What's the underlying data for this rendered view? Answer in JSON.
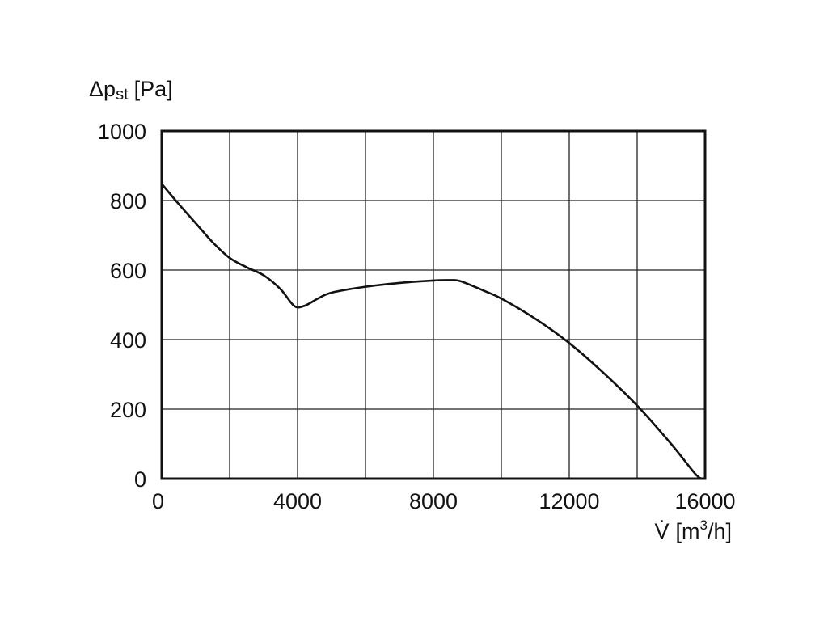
{
  "chart_data": {
    "type": "line",
    "ylabel": {
      "symbol": "Δp",
      "subscript": "st",
      "unit": "[Pa]"
    },
    "xlabel": {
      "symbol": "V̇",
      "unit_prefix": "[m",
      "unit_superscript": "3",
      "unit_suffix": "/h]"
    },
    "xlim": [
      0,
      16000
    ],
    "ylim": [
      0,
      1000
    ],
    "x_grid_step": 2000,
    "y_grid_step": 200,
    "x_tick_labels": [
      "0",
      "4000",
      "8000",
      "12000",
      "16000"
    ],
    "x_tick_values": [
      0,
      4000,
      8000,
      12000,
      16000
    ],
    "y_tick_labels": [
      "0",
      "200",
      "400",
      "600",
      "800",
      "1000"
    ],
    "y_tick_values": [
      0,
      200,
      400,
      600,
      800,
      1000
    ],
    "grid": true,
    "series": [
      {
        "color": "#111111",
        "points": [
          [
            0,
            848
          ],
          [
            500,
            790
          ],
          [
            1000,
            735
          ],
          [
            1500,
            680
          ],
          [
            2000,
            635
          ],
          [
            2500,
            608
          ],
          [
            3000,
            585
          ],
          [
            3500,
            545
          ],
          [
            3900,
            497
          ],
          [
            4200,
            497
          ],
          [
            4600,
            518
          ],
          [
            5000,
            535
          ],
          [
            6000,
            552
          ],
          [
            7000,
            563
          ],
          [
            8000,
            570
          ],
          [
            8500,
            571
          ],
          [
            8800,
            568
          ],
          [
            9500,
            540
          ],
          [
            10000,
            518
          ],
          [
            11000,
            460
          ],
          [
            12000,
            390
          ],
          [
            13000,
            305
          ],
          [
            14000,
            210
          ],
          [
            15000,
            100
          ],
          [
            15700,
            15
          ],
          [
            15900,
            0
          ]
        ]
      }
    ]
  }
}
